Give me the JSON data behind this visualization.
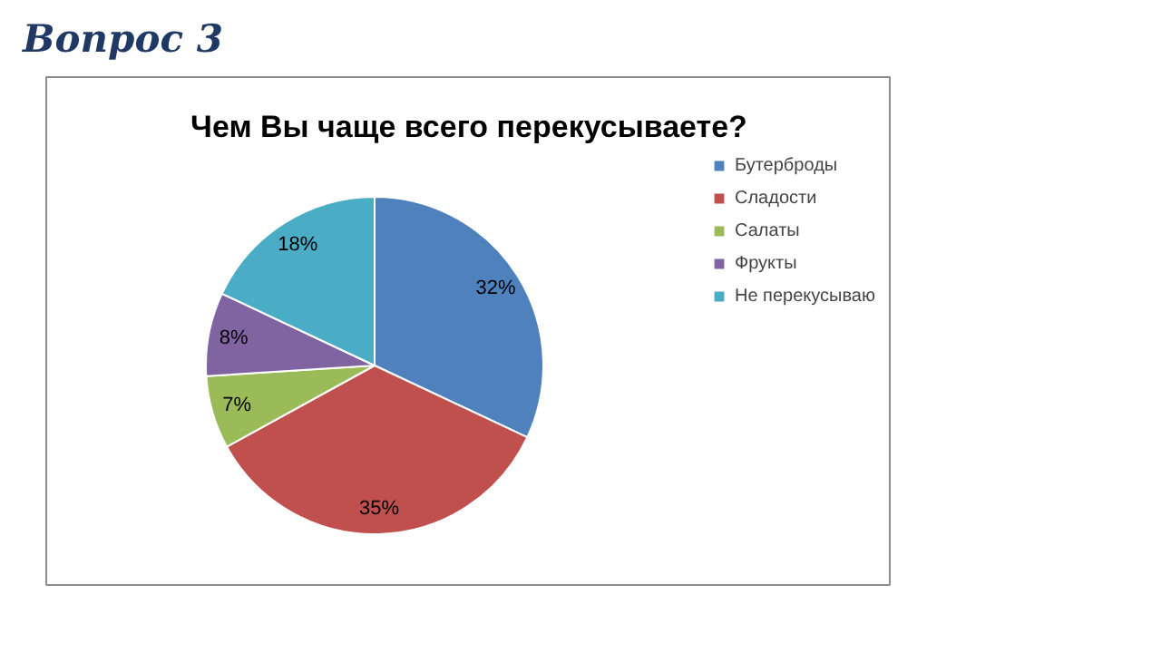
{
  "chart_data": {
    "type": "pie",
    "title": "Чем Вы чаще всего перекусываете?",
    "annotations": [
      "Вопрос 3"
    ],
    "categories": [
      "Бутерброды",
      "Сладости",
      "Салаты",
      "Фрукты",
      "Не перекусываю"
    ],
    "values": [
      32,
      35,
      7,
      8,
      18
    ],
    "colors": [
      "#4f81bd",
      "#c0504d",
      "#9bbb59",
      "#8064a2",
      "#4bacc6"
    ],
    "value_labels": [
      "32%",
      "35%",
      "7%",
      "8%",
      "18%"
    ],
    "legend": "right"
  }
}
